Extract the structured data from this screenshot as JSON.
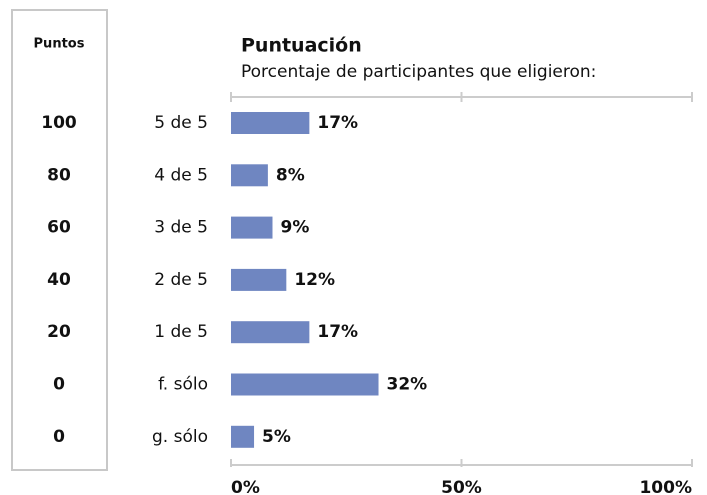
{
  "points_table": {
    "header": "Puntos",
    "values": [
      100,
      80,
      60,
      40,
      20,
      0,
      0
    ]
  },
  "chart_data": {
    "type": "bar",
    "orientation": "horizontal",
    "title": "Puntuación",
    "subtitle": "Porcentaje de participantes que eligieron:",
    "categories": [
      "5 de 5",
      "4 de 5",
      "3 de 5",
      "2 de 5",
      "1 de 5",
      "f. sólo",
      "g. sólo"
    ],
    "values": [
      17,
      8,
      9,
      12,
      17,
      32,
      5
    ],
    "value_labels": [
      "17%",
      "8%",
      "9%",
      "12%",
      "17%",
      "32%",
      "5%"
    ],
    "color": "#6f86c1",
    "xlim": [
      0,
      100
    ],
    "xticks": [
      {
        "value": 0,
        "label": "0%"
      },
      {
        "value": 50,
        "label": "50%"
      },
      {
        "value": 100,
        "label": "100%"
      }
    ]
  }
}
